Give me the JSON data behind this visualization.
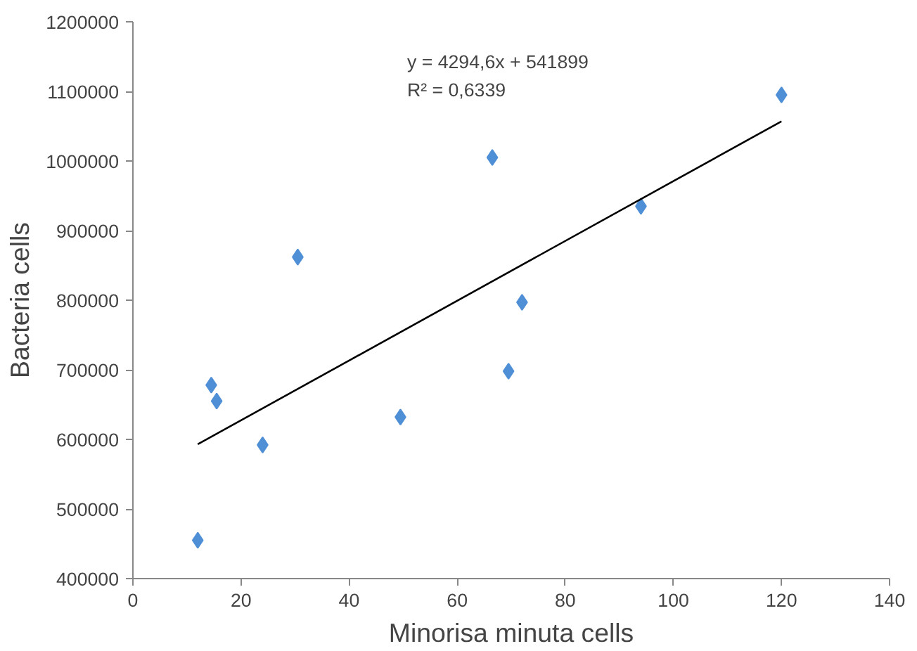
{
  "chart_data": {
    "type": "scatter",
    "xlabel": "Minorisa minuta cells",
    "ylabel": "Bacteria cells",
    "x": [
      12,
      14.5,
      15.5,
      24,
      30.5,
      49.5,
      66.5,
      69.5,
      72,
      94,
      120
    ],
    "series": [
      {
        "color": "#4f8fd6",
        "values": [
          455000,
          678000,
          655000,
          592000,
          862000,
          632000,
          1005000,
          698000,
          797000,
          935000,
          1095000
        ]
      },
      {
        "type": "line",
        "marker": "none",
        "color": "#000000",
        "x": [
          12,
          120
        ],
        "values": [
          593000,
          1057000
        ]
      }
    ],
    "xlim": [
      0,
      140
    ],
    "xticks": [
      0,
      20,
      40,
      60,
      80,
      100,
      120,
      140
    ],
    "ylim": [
      400000,
      1200000
    ],
    "yticks": [
      400000,
      500000,
      600000,
      700000,
      800000,
      900000,
      1000000,
      1100000,
      1200000
    ],
    "annotations": [
      "y = 4294,6x + 541899",
      "R² = 0,6339"
    ],
    "grid": false,
    "marker": "diamond"
  }
}
